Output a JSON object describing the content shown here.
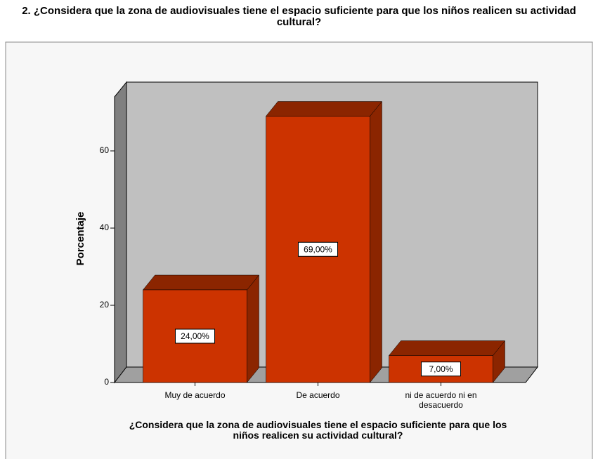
{
  "chart_data": {
    "type": "bar3d",
    "title": "2. ¿Considera que la zona de audiovisuales tiene el espacio suficiente para que los niños realicen su actividad cultural?",
    "x_label": "¿Considera que la zona de audiovisuales tiene el espacio suficiente para que los niños realicen su actividad cultural?",
    "y_label": "Porcentaje",
    "categories": [
      "Muy de acuerdo",
      "De acuerdo",
      "ni de acuerdo ni en desacuerdo"
    ],
    "values": [
      24,
      69,
      7
    ],
    "value_labels": [
      "24,00%",
      "69,00%",
      "7,00%"
    ],
    "color": "#cc3300",
    "ylim": [
      0,
      74
    ],
    "yticks": [
      0,
      20,
      40,
      60
    ]
  }
}
